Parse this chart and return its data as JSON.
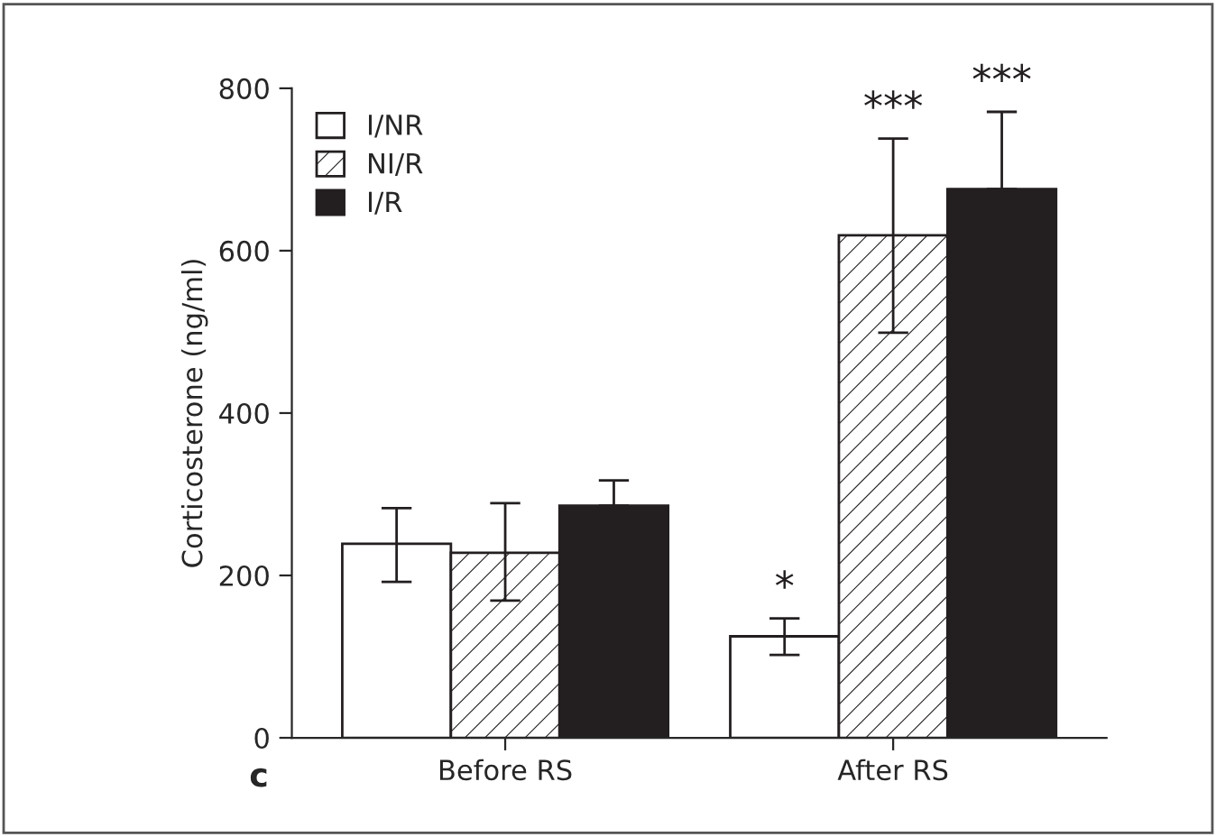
{
  "chart_data": {
    "type": "bar",
    "ylabel": "Corticosterone (ng/ml)",
    "categories": [
      "Before RS",
      "After RS"
    ],
    "series": [
      {
        "name": "I/NR",
        "color": "#ffffff",
        "values": [
          239,
          125
        ],
        "errors": [
          [
            192,
            283
          ],
          [
            102,
            147
          ]
        ]
      },
      {
        "name": "NI/R",
        "color": "#ffffff",
        "values": [
          228,
          619
        ],
        "errors": [
          [
            169,
            289
          ],
          [
            499,
            738
          ]
        ]
      },
      {
        "name": "I/R",
        "color": "#231f20",
        "values": [
          286,
          676
        ],
        "errors": [
          [
            286,
            317
          ],
          [
            676,
            771
          ]
        ]
      }
    ],
    "ylim": [
      0,
      800
    ],
    "yticks": [
      0,
      200,
      400,
      600,
      800
    ],
    "grid": false,
    "legend": "top left",
    "annotations": [
      "*",
      "***",
      "***",
      "c"
    ]
  }
}
